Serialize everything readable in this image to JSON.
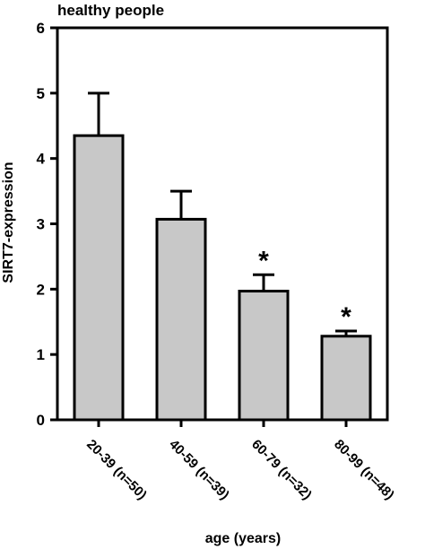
{
  "chart_data": {
    "type": "bar",
    "title": "healthy people",
    "xlabel": "age (years)",
    "ylabel": "SIRT7-expression",
    "categories": [
      "20-39 (n=50)",
      "40-59 (n=39)",
      "60-79 (n=32)",
      "80-99 (n=48)"
    ],
    "values": [
      4.35,
      3.07,
      1.97,
      1.28
    ],
    "error": [
      0.65,
      0.43,
      0.25,
      0.08
    ],
    "annotations": [
      "",
      "",
      "*",
      "*"
    ],
    "ylim": [
      0,
      6
    ],
    "yticks": [
      "0",
      "1",
      "2",
      "3",
      "4",
      "5",
      "6"
    ],
    "grid": false,
    "bar_color": "#c8c8c8",
    "edge_color": "#000000"
  }
}
